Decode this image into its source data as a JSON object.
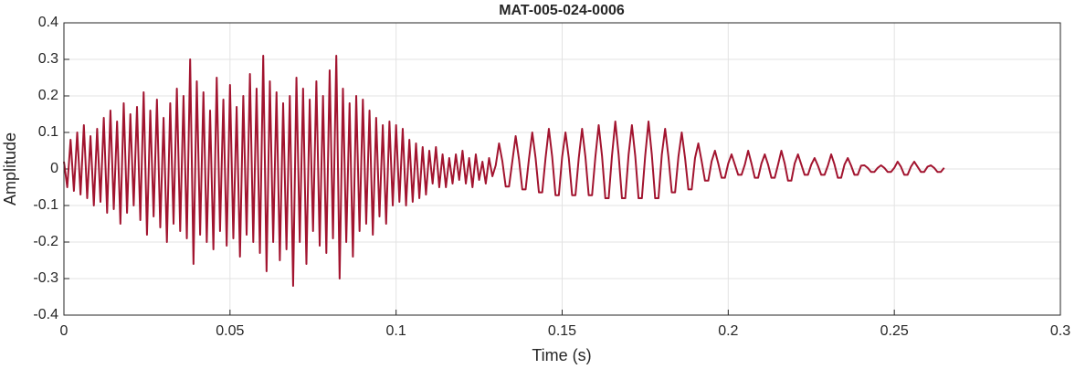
{
  "chart_data": {
    "type": "line",
    "title": "MAT-005-024-0006",
    "xlabel": "Time (s)",
    "ylabel": "Amplitude",
    "color": "#a2142f",
    "grid": true,
    "xlim": [
      0,
      0.3
    ],
    "xticks": [
      0,
      0.05,
      0.1,
      0.15,
      0.2,
      0.25,
      0.3
    ],
    "ylim": [
      -0.4,
      0.4
    ],
    "yticks": [
      -0.4,
      -0.3,
      -0.2,
      -0.1,
      0,
      0.1,
      0.2,
      0.3,
      0.4
    ],
    "x": [
      0,
      0.001,
      0.002,
      0.003,
      0.004,
      0.005,
      0.006,
      0.007,
      0.008,
      0.009,
      0.01,
      0.011,
      0.012,
      0.013,
      0.014,
      0.015,
      0.016,
      0.017,
      0.018,
      0.019,
      0.02,
      0.021,
      0.022,
      0.023,
      0.024,
      0.025,
      0.026,
      0.027,
      0.028,
      0.029,
      0.03,
      0.031,
      0.032,
      0.033,
      0.034,
      0.035,
      0.036,
      0.037,
      0.038,
      0.039,
      0.04,
      0.041,
      0.042,
      0.043,
      0.044,
      0.045,
      0.046,
      0.047,
      0.048,
      0.049,
      0.05,
      0.051,
      0.052,
      0.053,
      0.054,
      0.055,
      0.056,
      0.057,
      0.058,
      0.059,
      0.06,
      0.061,
      0.062,
      0.063,
      0.064,
      0.065,
      0.066,
      0.067,
      0.068,
      0.069,
      0.07,
      0.071,
      0.072,
      0.073,
      0.074,
      0.075,
      0.076,
      0.077,
      0.078,
      0.079,
      0.08,
      0.081,
      0.082,
      0.083,
      0.084,
      0.085,
      0.086,
      0.087,
      0.088,
      0.089,
      0.09,
      0.091,
      0.092,
      0.093,
      0.094,
      0.095,
      0.096,
      0.097,
      0.098,
      0.099,
      0.1,
      0.101,
      0.102,
      0.103,
      0.104,
      0.105,
      0.106,
      0.107,
      0.108,
      0.109,
      0.11,
      0.111,
      0.112,
      0.113,
      0.114,
      0.115,
      0.116,
      0.117,
      0.118,
      0.119,
      0.12,
      0.121,
      0.122,
      0.123,
      0.124,
      0.125,
      0.126,
      0.127,
      0.128,
      0.129,
      0.13,
      0.131,
      0.132,
      0.133,
      0.134,
      0.135,
      0.136,
      0.137,
      0.138,
      0.139,
      0.14,
      0.141,
      0.142,
      0.143,
      0.144,
      0.145,
      0.146,
      0.147,
      0.148,
      0.149,
      0.15,
      0.151,
      0.152,
      0.153,
      0.154,
      0.155,
      0.156,
      0.157,
      0.158,
      0.159,
      0.16,
      0.161,
      0.162,
      0.163,
      0.164,
      0.165,
      0.166,
      0.167,
      0.168,
      0.169,
      0.17,
      0.171,
      0.172,
      0.173,
      0.174,
      0.175,
      0.176,
      0.177,
      0.178,
      0.179,
      0.18,
      0.181,
      0.182,
      0.183,
      0.184,
      0.185,
      0.186,
      0.187,
      0.188,
      0.189,
      0.19,
      0.191,
      0.192,
      0.193,
      0.194,
      0.195,
      0.196,
      0.197,
      0.198,
      0.199,
      0.2,
      0.201,
      0.202,
      0.203,
      0.204,
      0.205,
      0.206,
      0.207,
      0.208,
      0.209,
      0.21,
      0.211,
      0.212,
      0.213,
      0.214,
      0.215,
      0.216,
      0.217,
      0.218,
      0.219,
      0.22,
      0.221,
      0.222,
      0.223,
      0.224,
      0.225,
      0.226,
      0.227,
      0.228,
      0.229,
      0.23,
      0.231,
      0.232,
      0.233,
      0.234,
      0.235,
      0.236,
      0.237,
      0.238,
      0.239,
      0.24,
      0.241,
      0.242,
      0.243,
      0.244,
      0.245,
      0.246,
      0.247,
      0.248,
      0.249,
      0.25,
      0.251,
      0.252,
      0.253,
      0.254,
      0.255,
      0.256,
      0.257,
      0.258,
      0.259,
      0.26,
      0.261,
      0.262,
      0.263,
      0.264,
      0.265
    ],
    "values": [
      0.02,
      -0.05,
      0.08,
      -0.06,
      0.1,
      -0.07,
      0.12,
      -0.08,
      0.09,
      -0.1,
      0.11,
      -0.09,
      0.14,
      -0.12,
      0.16,
      -0.11,
      0.13,
      -0.15,
      0.18,
      -0.12,
      0.15,
      -0.1,
      0.17,
      -0.14,
      0.21,
      -0.18,
      0.16,
      -0.13,
      0.19,
      -0.16,
      0.14,
      -0.2,
      0.18,
      -0.15,
      0.22,
      -0.17,
      0.2,
      -0.19,
      0.3,
      -0.26,
      0.24,
      -0.18,
      0.21,
      -0.2,
      0.16,
      -0.22,
      0.25,
      -0.17,
      0.19,
      -0.21,
      0.23,
      -0.19,
      0.17,
      -0.24,
      0.2,
      -0.18,
      0.26,
      -0.2,
      0.22,
      -0.23,
      0.31,
      -0.28,
      0.24,
      -0.2,
      0.21,
      -0.25,
      0.18,
      -0.22,
      0.2,
      -0.32,
      0.25,
      -0.2,
      0.22,
      -0.26,
      0.19,
      -0.17,
      0.24,
      -0.21,
      0.2,
      -0.23,
      0.27,
      -0.19,
      0.31,
      -0.3,
      0.22,
      -0.2,
      0.18,
      -0.24,
      0.2,
      -0.17,
      0.19,
      -0.15,
      0.16,
      -0.18,
      0.14,
      -0.13,
      0.12,
      -0.15,
      0.13,
      -0.1,
      0.12,
      -0.09,
      0.11,
      -0.1,
      0.08,
      -0.09,
      0.07,
      -0.08,
      0.06,
      -0.07,
      0.05,
      -0.04,
      0.06,
      -0.05,
      0.04,
      -0.05,
      0.03,
      -0.04,
      0.04,
      -0.03,
      0.05,
      -0.04,
      0.03,
      -0.05,
      0.04,
      -0.03,
      0.02,
      -0.04,
      0.03,
      -0.02,
      0.01,
      0.07,
      0.021,
      -0.048,
      -0.048,
      0.021,
      0.09,
      0.027,
      -0.056,
      -0.056,
      0.027,
      0.1,
      0.03,
      -0.064,
      -0.064,
      0.03,
      0.11,
      0.033,
      -0.072,
      -0.072,
      0.033,
      0.1,
      0.03,
      -0.072,
      -0.072,
      0.03,
      0.11,
      0.033,
      -0.072,
      -0.072,
      0.033,
      0.12,
      0.036,
      -0.08,
      -0.08,
      0.036,
      0.13,
      0.039,
      -0.08,
      -0.08,
      0.039,
      0.12,
      0.036,
      -0.08,
      -0.08,
      0.036,
      0.13,
      0.039,
      -0.08,
      -0.08,
      0.039,
      0.11,
      0.033,
      -0.064,
      -0.064,
      0.033,
      0.1,
      0.03,
      -0.056,
      -0.056,
      0.03,
      0.07,
      0.021,
      -0.032,
      -0.032,
      0.021,
      0.05,
      0.015,
      -0.024,
      -0.024,
      0.015,
      0.04,
      0.012,
      -0.016,
      -0.016,
      0.012,
      0.05,
      0.015,
      -0.024,
      -0.024,
      0.015,
      0.04,
      0.012,
      -0.024,
      -0.024,
      0.012,
      0.05,
      0.015,
      -0.032,
      -0.032,
      0.015,
      0.04,
      0.012,
      -0.016,
      -0.016,
      0.012,
      0.03,
      0.009,
      -0.016,
      -0.016,
      0.009,
      0.04,
      0.012,
      -0.024,
      -0.024,
      0.012,
      0.03,
      0.009,
      -0.016,
      -0.016,
      0.009,
      0.01,
      0.003,
      -0.008,
      -0.008,
      0.003,
      0.01,
      0.003,
      -0.008,
      -0.008,
      0.003,
      0.02,
      0.006,
      -0.016,
      -0.016,
      0.006,
      0.02,
      0.006,
      -0.008,
      -0.008,
      0.006,
      0.01,
      0.003,
      -0.008,
      -0.008,
      0.003
    ]
  }
}
